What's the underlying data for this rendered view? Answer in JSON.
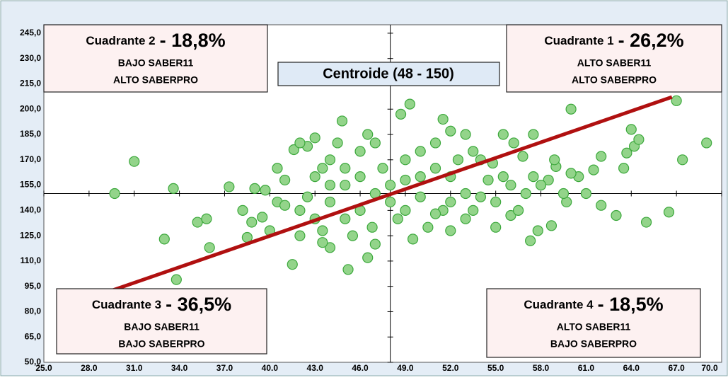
{
  "chart_data": {
    "type": "scatter",
    "centroid_label": "Centroide (48  -  150)",
    "centroid": {
      "x": 48,
      "y": 150
    },
    "quadrants": [
      {
        "title": "Cuadrante 2",
        "percent": "- 18,8%",
        "lines": [
          "BAJO SABER11",
          "ALTO SABERPRO"
        ]
      },
      {
        "title": "Cuadrante 1",
        "percent": "- 26,2%",
        "lines": [
          "ALTO SABER11",
          "ALTO SABERPRO"
        ]
      },
      {
        "title": "Cuadrante 3",
        "percent": "- 36,5%",
        "lines": [
          "BAJO SABER11",
          "BAJO SABERPRO"
        ]
      },
      {
        "title": "Cuadrante 4",
        "percent": "- 18,5%",
        "lines": [
          "ALTO SABER11",
          "BAJO SABERPRO"
        ]
      }
    ],
    "trendline": {
      "color": "#b01010",
      "x": [
        29.6,
        66.7
      ],
      "y": [
        92.8,
        207.2
      ]
    },
    "xlim": [
      25,
      70
    ],
    "ylim": [
      50,
      250
    ],
    "xticks": [
      {
        "value": 25,
        "label": "25.0"
      },
      {
        "value": 28,
        "label": "28.0"
      },
      {
        "value": 31,
        "label": "31.0"
      },
      {
        "value": 34,
        "label": "34.0"
      },
      {
        "value": 37,
        "label": "37.0"
      },
      {
        "value": 40,
        "label": "40.0"
      },
      {
        "value": 43,
        "label": "43.0"
      },
      {
        "value": 46,
        "label": "46.0"
      },
      {
        "value": 49,
        "label": "49.0"
      },
      {
        "value": 52,
        "label": "52.0"
      },
      {
        "value": 55,
        "label": "55.0"
      },
      {
        "value": 58,
        "label": "58.0"
      },
      {
        "value": 61,
        "label": "61.0"
      },
      {
        "value": 64,
        "label": "64.0"
      },
      {
        "value": 67,
        "label": "67.0"
      },
      {
        "value": 70,
        "label": "70.0"
      }
    ],
    "yticks": [
      {
        "value": 50,
        "label": "50,0"
      },
      {
        "value": 65,
        "label": "65,0"
      },
      {
        "value": 80,
        "label": "80,0"
      },
      {
        "value": 95,
        "label": "95,0"
      },
      {
        "value": 110,
        "label": "110,0"
      },
      {
        "value": 125,
        "label": "125,0"
      },
      {
        "value": 140,
        "label": "140,0"
      },
      {
        "value": 155,
        "label": "155,0"
      },
      {
        "value": 170,
        "label": "170,0"
      },
      {
        "value": 185,
        "label": "185,0"
      },
      {
        "value": 200,
        "label": "200,0"
      },
      {
        "value": 215,
        "label": "215,0"
      },
      {
        "value": 230,
        "label": "230,0"
      },
      {
        "value": 245,
        "label": "245,0"
      }
    ],
    "color": "#93d48a",
    "x": [
      29.7,
      31.0,
      33.0,
      33.6,
      33.8,
      35.2,
      35.8,
      36,
      37.3,
      39,
      41.5,
      41.6,
      44.8,
      45.2,
      48.7,
      49.3,
      51.5,
      60,
      62,
      63,
      65,
      66.5,
      67,
      67.4,
      69,
      64,
      63.7,
      64.2,
      64.5,
      63.5,
      62,
      61.5,
      59,
      58.5,
      57.3,
      57.8,
      58.7,
      56,
      59.7,
      56.8,
      57.5,
      58.9,
      55.5,
      56.2,
      54.5,
      53,
      52.5,
      51.5,
      50.5,
      49.5,
      47,
      46.5,
      44,
      43.5,
      42,
      40,
      39.5,
      38.5,
      38.8,
      38.2,
      39.7,
      40.5,
      41,
      42.5,
      43,
      43.5,
      44,
      44.5,
      43,
      42.5,
      42,
      46,
      46.5,
      47,
      47.5,
      48,
      49,
      50,
      51,
      52,
      53,
      54,
      55,
      53,
      52,
      49,
      48,
      47,
      46,
      45,
      44,
      43,
      45,
      46,
      50,
      51,
      52,
      53.5,
      54.8,
      55.5,
      56,
      54,
      50,
      49,
      45,
      44,
      41,
      40.5,
      42,
      43.5,
      45.5,
      46.8,
      48.5,
      51,
      52,
      53.5,
      55,
      56.5,
      57,
      58,
      60.5,
      61,
      59.5,
      57.5,
      60
    ],
    "y": [
      150,
      169,
      123,
      153,
      99,
      133,
      135,
      118,
      154,
      153,
      108,
      176,
      193,
      105,
      197,
      203,
      194,
      200,
      143,
      137,
      133,
      139,
      205,
      170,
      180,
      188,
      174,
      178,
      182,
      165,
      172,
      164,
      166,
      158,
      122,
      128,
      131,
      137,
      145,
      172,
      185,
      170,
      185,
      180,
      158,
      185,
      170,
      140,
      130,
      123,
      120,
      112,
      118,
      121,
      125,
      128,
      136,
      124,
      133,
      140,
      152,
      145,
      143,
      148,
      160,
      165,
      170,
      180,
      183,
      178,
      180,
      175,
      185,
      180,
      165,
      155,
      158,
      160,
      165,
      160,
      150,
      148,
      145,
      135,
      128,
      140,
      145,
      150,
      140,
      135,
      145,
      135,
      155,
      160,
      175,
      180,
      187,
      175,
      168,
      160,
      155,
      170,
      148,
      170,
      165,
      155,
      158,
      165,
      140,
      128,
      125,
      130,
      135,
      138,
      145,
      140,
      130,
      140,
      150,
      155,
      160,
      150,
      150,
      160,
      162
    ]
  }
}
